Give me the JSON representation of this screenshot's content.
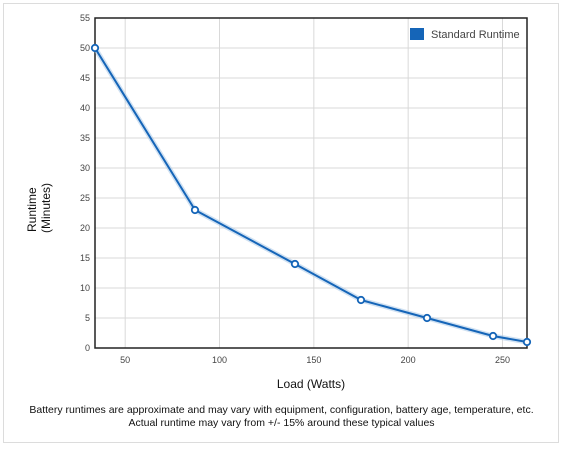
{
  "chart_data": {
    "type": "line",
    "title": "",
    "xlabel": "Load (Watts)",
    "ylabel_lines": [
      "Runtime",
      "(Minutes)"
    ],
    "xlim": [
      34,
      263
    ],
    "ylim": [
      0,
      55
    ],
    "x_ticks": [
      50,
      100,
      150,
      200,
      250
    ],
    "y_ticks": [
      0,
      5,
      10,
      15,
      20,
      25,
      30,
      35,
      40,
      45,
      50,
      55
    ],
    "grid": true,
    "legend_position": "top-right",
    "series": [
      {
        "name": "Standard Runtime",
        "color": "#1565b8",
        "x": [
          34,
          87,
          140,
          175,
          210,
          245,
          263
        ],
        "y": [
          50,
          23,
          14,
          8,
          5,
          2,
          1
        ]
      }
    ]
  },
  "footnote": {
    "line1": "Battery runtimes are approximate and may vary with equipment, configuration, battery age, temperature, etc.",
    "line2": "Actual runtime may vary from +/- 15% around these typical values"
  }
}
